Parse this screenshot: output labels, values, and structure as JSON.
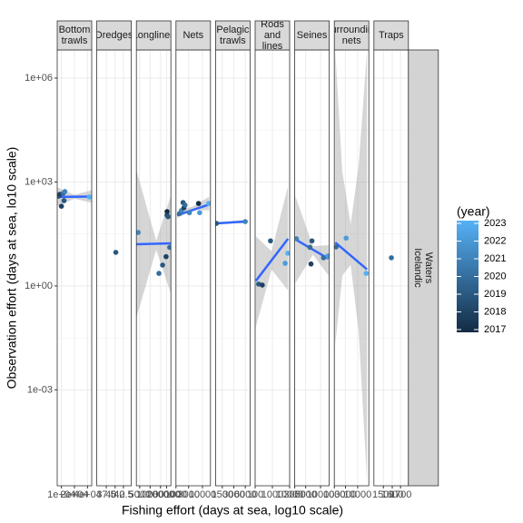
{
  "chart_data": {
    "type": "facet_scatter_smooth",
    "x_label": "Fishing effort (days at sea, log10 scale)",
    "y_label": "Observation effort (days at sea, lo10 scale)",
    "log_x": true,
    "log_y": true,
    "grid": true,
    "ylim": [
      1.7e-06,
      6500000
    ],
    "yticks": [
      {
        "value": 0.001,
        "label": "1e-03"
      },
      {
        "value": 1,
        "label": "1e+00"
      },
      {
        "value": 1000,
        "label": "1e+03"
      },
      {
        "value": 1000000,
        "label": "1e+06"
      }
    ],
    "row_strip": [
      "Icelandic",
      "Waters"
    ],
    "fit_color": "#3366FF",
    "ribbon_color": "#999999",
    "color_scale": {
      "name": "(year)",
      "low": "#132B43",
      "high": "#56B1F7",
      "limits": [
        2017,
        2023
      ],
      "ticks": [
        2017,
        2018,
        2019,
        2020,
        2021,
        2022,
        2023
      ]
    },
    "facets": [
      {
        "label": [
          "Bottom",
          "trawls"
        ],
        "xlim": [
          8000,
          50000
        ],
        "xticks": [
          {
            "value": 10000,
            "label": "1e+04"
          },
          {
            "value": 20000,
            "label": "2e+04"
          },
          {
            "value": 40000,
            "label": "4e+04"
          }
        ],
        "points": [
          {
            "x": 8700,
            "y": 390,
            "year": 2019
          },
          {
            "x": 9200,
            "y": 440,
            "year": 2018
          },
          {
            "x": 10000,
            "y": 200,
            "year": 2018
          },
          {
            "x": 11000,
            "y": 470,
            "year": 2020
          },
          {
            "x": 11500,
            "y": 290,
            "year": 2019
          },
          {
            "x": 12000,
            "y": 530,
            "year": 2021
          },
          {
            "x": 44000,
            "y": 370,
            "year": 2023
          }
        ],
        "fit": {
          "x": [
            8000,
            50000
          ],
          "y": [
            370,
            380
          ]
        },
        "ribbon": {
          "x": [
            8000,
            20000,
            50000
          ],
          "lower": [
            200,
            330,
            250
          ],
          "upper": [
            700,
            430,
            580
          ]
        }
      },
      {
        "label": [
          "Dredges"
        ],
        "xlim": [
          35,
          45
        ],
        "xticks": [
          37.5,
          {
            "value": 40,
            "label": "40.0"
          },
          42.5
        ],
        "points": [
          {
            "x": 40.2,
            "y": 9.3,
            "year": 2019
          }
        ]
      },
      {
        "label": [
          "Longlines"
        ],
        "xlim": [
          4000,
          40000
        ],
        "xticks": [
          5000,
          10000,
          20000,
          30000
        ],
        "points": [
          {
            "x": 4500,
            "y": 35,
            "year": 2021
          },
          {
            "x": 18000,
            "y": 2.3,
            "year": 2020
          },
          {
            "x": 23000,
            "y": 4,
            "year": 2019
          },
          {
            "x": 29000,
            "y": 7,
            "year": 2018
          },
          {
            "x": 31000,
            "y": 140,
            "year": 2017
          },
          {
            "x": 31000,
            "y": 110,
            "year": 2018
          },
          {
            "x": 33000,
            "y": 100,
            "year": 2019
          },
          {
            "x": 37000,
            "y": 13,
            "year": 2020
          }
        ],
        "fit": {
          "x": [
            4000,
            40000
          ],
          "y": [
            16,
            17
          ]
        },
        "ribbon": {
          "x": [
            4000,
            15000,
            40000
          ],
          "lower": [
            0.12,
            11,
            0.6
          ],
          "upper": [
            2250,
            20,
            410
          ]
        }
      },
      {
        "label": [
          "Nets"
        ],
        "xlim": [
          1000,
          20000
        ],
        "xticks": [
          1000,
          3000,
          10000
        ],
        "points": [
          {
            "x": 1370,
            "y": 123,
            "year": 2020
          },
          {
            "x": 1600,
            "y": 150,
            "year": 2021
          },
          {
            "x": 1850,
            "y": 255,
            "year": 2019
          },
          {
            "x": 2000,
            "y": 180,
            "year": 2018
          },
          {
            "x": 2200,
            "y": 215,
            "year": 2020
          },
          {
            "x": 3200,
            "y": 130,
            "year": 2021
          },
          {
            "x": 7100,
            "y": 240,
            "year": 2017
          },
          {
            "x": 7800,
            "y": 130,
            "year": 2022
          },
          {
            "x": 17000,
            "y": 240,
            "year": 2023
          }
        ],
        "fit": {
          "x": [
            1100,
            18000
          ],
          "y": [
            110,
            225
          ]
        },
        "ribbon": {
          "x": [
            1100,
            4500,
            18000
          ],
          "lower": [
            90,
            160,
            150
          ],
          "upper": [
            140,
            200,
            380
          ]
        }
      },
      {
        "label": [
          "Pelagic",
          "trawls"
        ],
        "xlim": [
          1000,
          8000
        ],
        "xticks": [
          1500,
          3000,
          6000
        ],
        "points": [
          {
            "x": 1050,
            "y": 64,
            "year": 2019
          },
          {
            "x": 6000,
            "y": 72,
            "year": 2021
          }
        ],
        "fit": {
          "x": [
            1050,
            6000
          ],
          "y": [
            64,
            72
          ]
        },
        "ribbon": {
          "x": [
            1050,
            2500,
            6000
          ],
          "lower": [
            58,
            66,
            63
          ],
          "upper": [
            70,
            74,
            82
          ]
        }
      },
      {
        "label": [
          "Rods",
          "and",
          "lines"
        ],
        "xlim": [
          100,
          10000
        ],
        "xticks": [
          100,
          1000,
          10000
        ],
        "points": [
          {
            "x": 160,
            "y": 1.13,
            "year": 2019
          },
          {
            "x": 260,
            "y": 1.06,
            "year": 2018
          },
          {
            "x": 780,
            "y": 20,
            "year": 2019
          },
          {
            "x": 5500,
            "y": 4.5,
            "year": 2022
          },
          {
            "x": 7800,
            "y": 8.8,
            "year": 2023
          }
        ],
        "fit": {
          "x": [
            110,
            8000
          ],
          "y": [
            1.4,
            23
          ]
        },
        "ribbon": {
          "x": [
            110,
            900,
            8000
          ],
          "lower": [
            0.066,
            3,
            0.74
          ],
          "upper": [
            27,
            10,
            760
          ]
        }
      },
      {
        "label": [
          "Seines"
        ],
        "xlim": [
          3000,
          15000
        ],
        "xticks": [
          3000,
          5000,
          10000
        ],
        "points": [
          {
            "x": 3250,
            "y": 23,
            "year": 2021
          },
          {
            "x": 6100,
            "y": 13,
            "year": 2020
          },
          {
            "x": 6400,
            "y": 4.3,
            "year": 2018
          },
          {
            "x": 6700,
            "y": 20,
            "year": 2019
          },
          {
            "x": 11500,
            "y": 6.5,
            "year": 2020
          },
          {
            "x": 14000,
            "y": 7.3,
            "year": 2022
          }
        ],
        "fit": {
          "x": [
            3100,
            14500
          ],
          "y": [
            22,
            6.1
          ]
        },
        "ribbon": {
          "x": [
            3100,
            7000,
            14500
          ],
          "lower": [
            1.2,
            8,
            2
          ],
          "upper": [
            390,
            14,
            15
          ]
        }
      },
      {
        "label": [
          "Surrounding",
          "nets"
        ],
        "xlim": [
          1000,
          30000
        ],
        "xticks": [
          1000,
          3000,
          10000
        ],
        "points": [
          {
            "x": 1200,
            "y": 13.4,
            "year": 2020
          },
          {
            "x": 3200,
            "y": 24,
            "year": 2022
          },
          {
            "x": 23000,
            "y": 2.3,
            "year": 2023
          }
        ],
        "fit": {
          "x": [
            1100,
            25000
          ],
          "y": [
            18,
            3
          ]
        },
        "ribbon": {
          "x": [
            1100,
            2200,
            5000,
            11000,
            25000
          ],
          "lower": [
            0.02,
            2,
            4,
            0.05,
            2.3e-06
          ],
          "upper": [
            6000000,
            2000,
            60,
            3000,
            6000000
          ]
        }
      },
      {
        "label": [
          "Traps"
        ],
        "xlim": [
          1400,
          1800
        ],
        "xticks": [
          1500,
          1600,
          1700
        ],
        "points": [
          {
            "x": 1590,
            "y": 6.5,
            "year": 2020
          }
        ]
      }
    ]
  }
}
